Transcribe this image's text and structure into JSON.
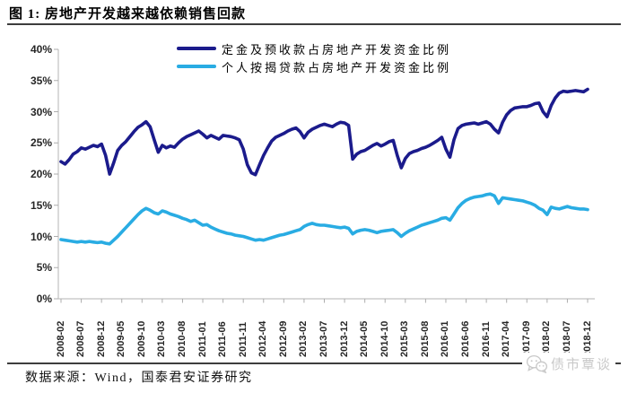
{
  "header": {
    "title": "图 1: 房地产开发越来越依赖销售回款"
  },
  "footer": {
    "source": "数据来源：Wind，国泰君安证券研究",
    "watermark": "债市覃谈",
    "watermark_icon": "wechat-bubbles-icon"
  },
  "colors": {
    "series_deposits": "#1b1b8c",
    "series_mortgage": "#29ace3",
    "axis": "#c2c2c2",
    "tick": "#adadad",
    "label_text": "#262626",
    "rule": "#3d3d3d",
    "watermark_gray": "#c9c9c9"
  },
  "chart_data": {
    "type": "line",
    "title": "房地产开发越来越依赖销售回款",
    "xlabel": "",
    "ylabel": "",
    "x_unit": "month",
    "x_start": "2008-02",
    "x_end": "2018-12",
    "ylim": [
      0,
      40
    ],
    "y_tick_step_pct": 5,
    "grid": false,
    "legend_position": "top",
    "y_tick_labels": [
      "40%",
      "35%",
      "30%",
      "25%",
      "20%",
      "15%",
      "10%",
      "5%",
      "0%"
    ],
    "x_tick_labels": [
      "2008-02",
      "2008-07",
      "2008-12",
      "2009-05",
      "2009-10",
      "2010-03",
      "2010-08",
      "2011-01",
      "2011-06",
      "2011-11",
      "2012-04",
      "2012-09",
      "2013-02",
      "2013-07",
      "2013-12",
      "2014-05",
      "2014-10",
      "2015-03",
      "2015-08",
      "2016-01",
      "2016-06",
      "2016-11",
      "2017-04",
      "2017-09",
      "2018-02",
      "2018-07",
      "2018-12"
    ],
    "x_tick_interval_months": 5,
    "series": [
      {
        "name": "定金及预收款占房地产开发资金比例",
        "color": "#1b1b8c",
        "values": [
          22.0,
          21.6,
          22.3,
          23.2,
          23.6,
          24.2,
          24.0,
          24.3,
          24.6,
          24.4,
          24.8,
          23.0,
          20.0,
          21.8,
          23.8,
          24.6,
          25.2,
          26.0,
          26.8,
          27.5,
          27.9,
          28.4,
          27.6,
          25.5,
          23.5,
          24.6,
          24.2,
          24.5,
          24.3,
          25.0,
          25.6,
          26.0,
          26.3,
          26.6,
          26.9,
          26.4,
          25.8,
          26.2,
          25.9,
          25.6,
          26.2,
          26.1,
          26.0,
          25.8,
          25.5,
          24.0,
          21.5,
          20.2,
          19.9,
          21.5,
          23.0,
          24.2,
          25.3,
          25.9,
          26.2,
          26.5,
          26.9,
          27.2,
          27.4,
          26.8,
          25.8,
          26.7,
          27.2,
          27.5,
          27.8,
          28.0,
          27.8,
          27.6,
          28.0,
          28.3,
          28.2,
          27.8,
          22.4,
          23.2,
          23.6,
          23.8,
          24.2,
          24.6,
          24.9,
          24.5,
          24.8,
          25.2,
          25.4,
          23.0,
          21.0,
          22.5,
          23.3,
          23.6,
          23.8,
          24.1,
          24.3,
          24.6,
          25.0,
          25.4,
          25.9,
          24.0,
          22.7,
          25.5,
          27.3,
          27.8,
          28.0,
          28.1,
          28.2,
          28.0,
          28.2,
          28.4,
          28.0,
          27.2,
          26.6,
          28.3,
          29.5,
          30.2,
          30.6,
          30.7,
          30.8,
          30.8,
          31.0,
          31.3,
          31.4,
          30.0,
          29.2,
          31.0,
          32.2,
          33.0,
          33.3,
          33.2,
          33.3,
          33.4,
          33.3,
          33.2,
          33.6
        ]
      },
      {
        "name": "个人按揭贷款占房地产开发资金比例",
        "color": "#29ace3",
        "values": [
          9.5,
          9.4,
          9.3,
          9.2,
          9.1,
          9.2,
          9.1,
          9.2,
          9.1,
          9.0,
          9.1,
          8.9,
          8.8,
          9.4,
          10.0,
          10.7,
          11.4,
          12.1,
          12.8,
          13.5,
          14.1,
          14.5,
          14.2,
          13.8,
          13.6,
          14.1,
          13.9,
          13.6,
          13.4,
          13.2,
          12.9,
          12.7,
          12.4,
          12.6,
          12.2,
          11.8,
          11.9,
          11.5,
          11.2,
          10.9,
          10.7,
          10.5,
          10.4,
          10.2,
          10.1,
          10.0,
          9.8,
          9.6,
          9.4,
          9.5,
          9.4,
          9.6,
          9.8,
          10.0,
          10.2,
          10.3,
          10.5,
          10.7,
          10.9,
          11.1,
          11.6,
          11.9,
          12.1,
          11.9,
          11.8,
          11.8,
          11.7,
          11.6,
          11.5,
          11.4,
          11.5,
          11.3,
          10.4,
          10.8,
          11.0,
          11.1,
          11.0,
          10.8,
          10.6,
          10.8,
          10.9,
          11.0,
          11.1,
          10.6,
          10.0,
          10.5,
          10.9,
          11.2,
          11.5,
          11.8,
          12.0,
          12.2,
          12.4,
          12.6,
          12.9,
          13.0,
          12.6,
          13.6,
          14.6,
          15.3,
          15.8,
          16.1,
          16.3,
          16.4,
          16.5,
          16.7,
          16.8,
          16.5,
          15.3,
          16.2,
          16.1,
          16.0,
          15.9,
          15.8,
          15.7,
          15.5,
          15.3,
          15.0,
          14.5,
          14.2,
          13.5,
          14.7,
          14.5,
          14.4,
          14.6,
          14.8,
          14.6,
          14.5,
          14.4,
          14.4,
          14.3
        ]
      }
    ]
  }
}
